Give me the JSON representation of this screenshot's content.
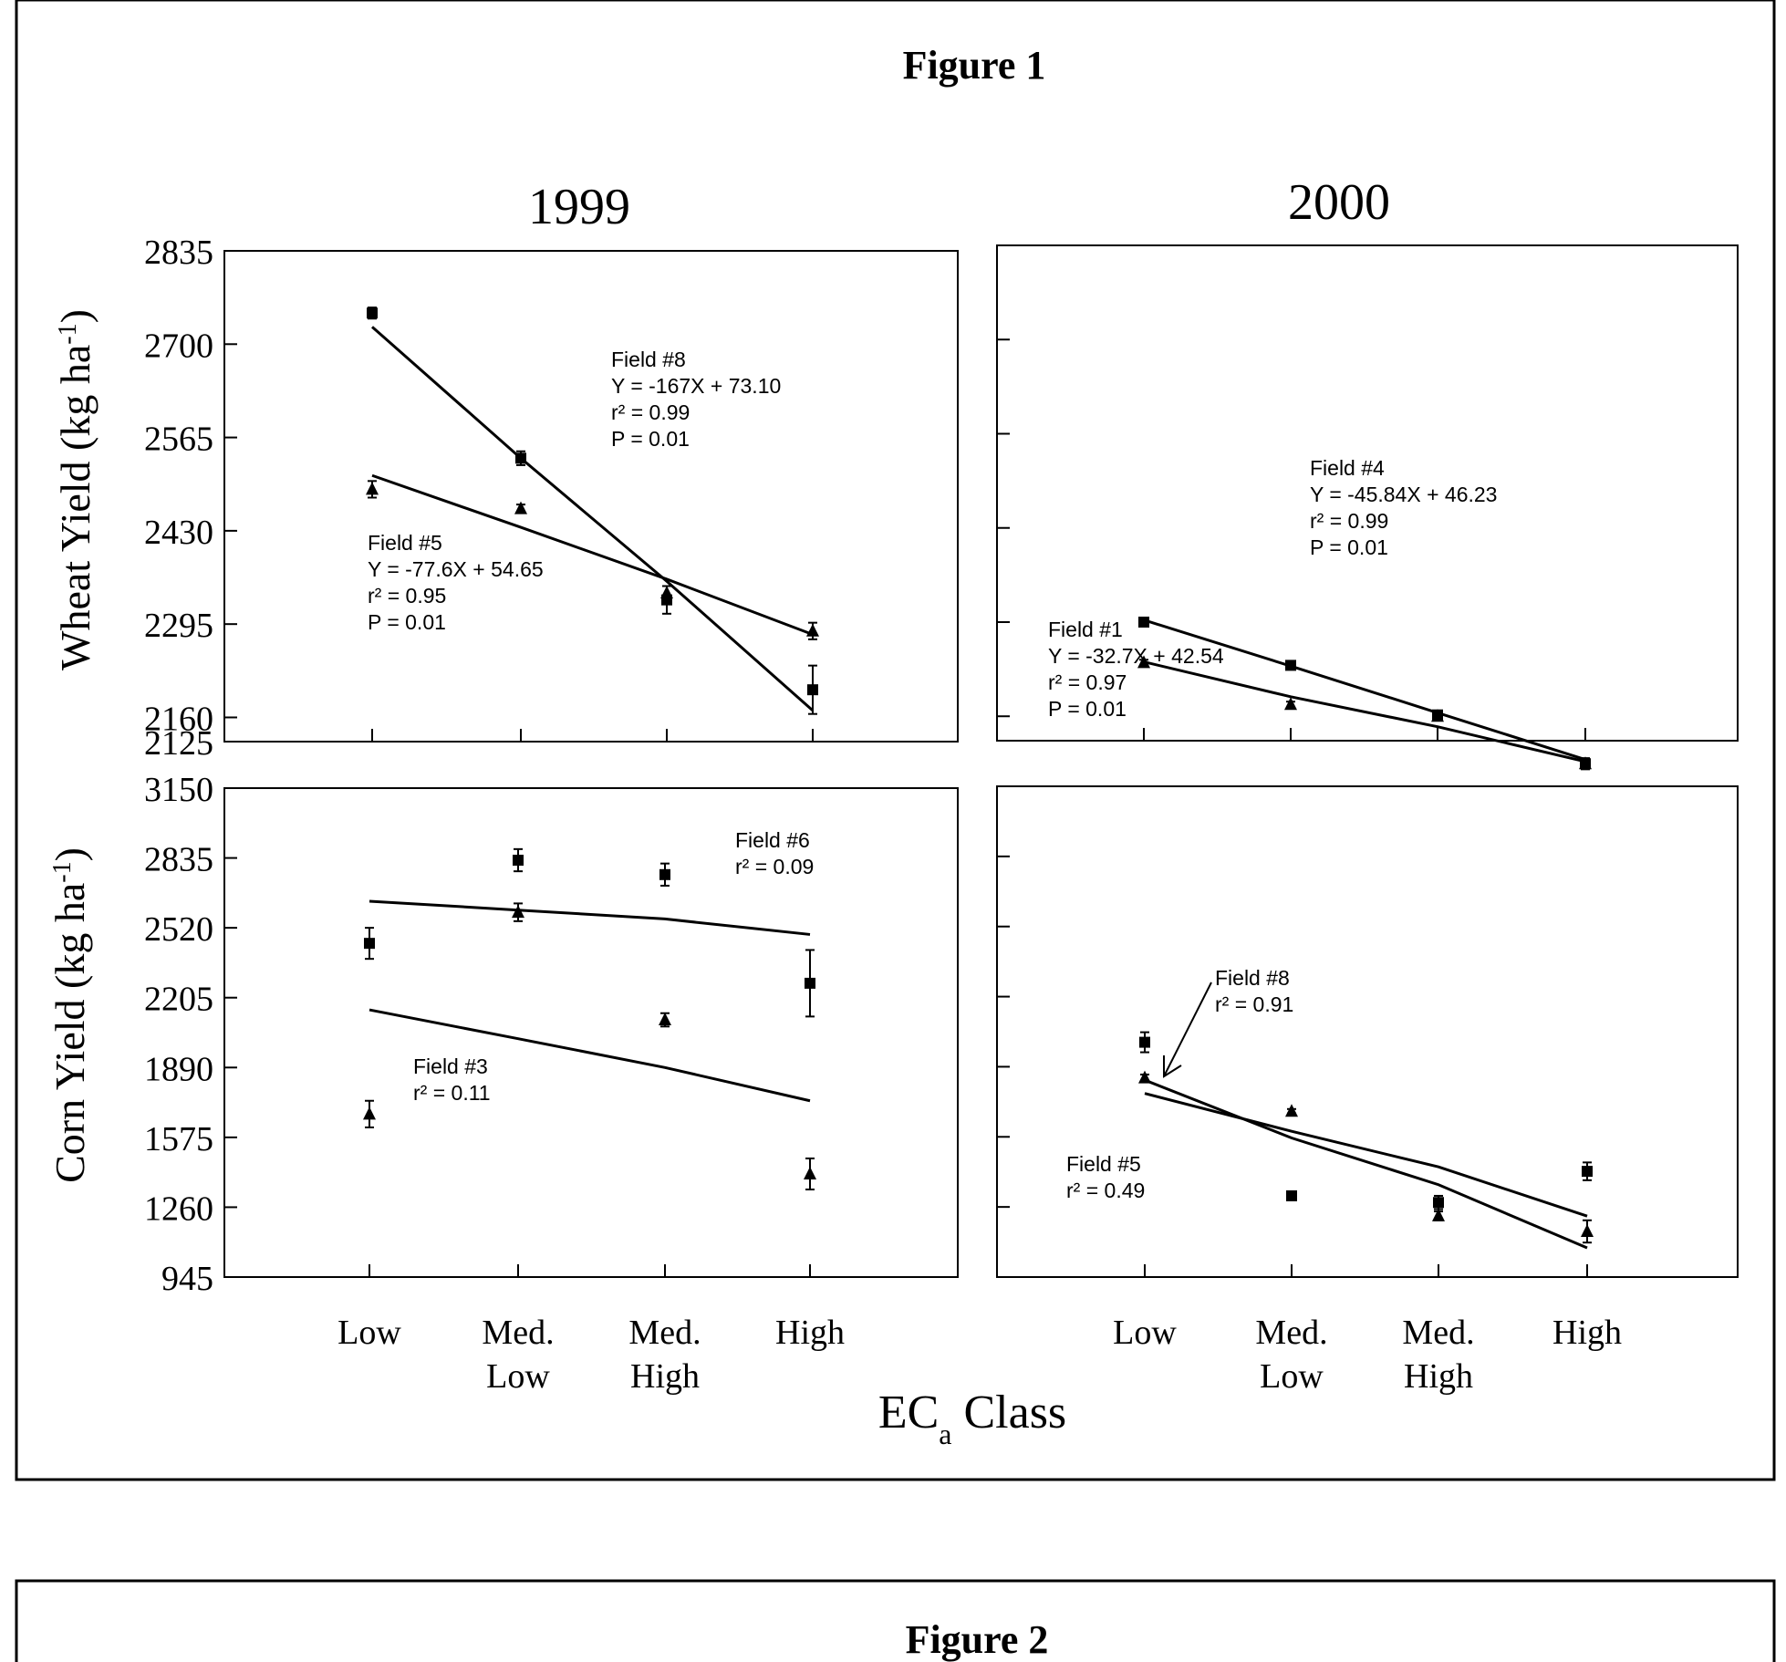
{
  "figure1": {
    "title": "Figure 1",
    "col_titles": [
      "1999",
      "2000"
    ],
    "ylabel_wheat": "Wheat Yield (kg ha-1)",
    "ylabel_corn": "Corn Yield (kg ha-1)",
    "xlabel_main": "EC",
    "xlabel_sub": "a",
    "xlabel_rest": " Class"
  },
  "figure2": {
    "title": "Figure 2"
  },
  "chart_data": [
    {
      "type": "scatter",
      "panel": "wheat-1999",
      "categories": [
        "Low",
        "Med. Low",
        "Med. High",
        "High"
      ],
      "ylim": [
        2125,
        2835
      ],
      "yticks": [
        2125,
        2160,
        2295,
        2430,
        2565,
        2700,
        2835
      ],
      "ytick_labels_shown": true,
      "xtick_labels_shown": false,
      "series": [
        {
          "name": "Field #8",
          "marker": "square",
          "values": [
            2745,
            2535,
            2330,
            2200
          ],
          "err": [
            8,
            10,
            20,
            35
          ],
          "fit": [
            2725,
            2535,
            2357,
            2170
          ]
        },
        {
          "name": "Field #5",
          "marker": "triangle",
          "values": [
            2490,
            2462,
            2340,
            2285
          ],
          "err": [
            12,
            6,
            10,
            12
          ],
          "fit": [
            2510,
            2435,
            2360,
            2280
          ]
        }
      ],
      "annotations": [
        {
          "lines": [
            "Field #8",
            "Y = -167X + 73.10",
            "r² = 0.99",
            "P = 0.01"
          ]
        },
        {
          "lines": [
            "Field #5",
            "Y = -77.6X + 54.65",
            "r² = 0.95",
            "P = 0.01"
          ]
        }
      ],
      "grid": false
    },
    {
      "type": "scatter",
      "panel": "wheat-2000",
      "categories": [
        "Low",
        "Med. Low",
        "Med. High",
        "High"
      ],
      "ylim": [
        2125,
        2835
      ],
      "yticks": [
        2160,
        2295,
        2430,
        2565,
        2700
      ],
      "ytick_labels_shown": false,
      "xtick_labels_shown": false,
      "series": [
        {
          "name": "Field #4",
          "marker": "square",
          "values": [
            2295,
            2233,
            2162,
            2092
          ],
          "err": [
            4,
            4,
            6,
            8
          ],
          "fit": [
            2298,
            2232,
            2165,
            2098
          ]
        },
        {
          "name": "Field #1",
          "marker": "triangle",
          "values": [
            2237,
            2177,
            2160,
            2092
          ],
          "err": [
            4,
            4,
            4,
            6
          ],
          "fit": [
            2238,
            2188,
            2145,
            2095
          ]
        }
      ],
      "annotations": [
        {
          "lines": [
            "Field #4",
            "Y = -45.84X + 46.23",
            "r² = 0.99",
            "P = 0.01"
          ]
        },
        {
          "lines": [
            "Field #1",
            "Y = -32.7X + 42.54",
            "r² = 0.97",
            "P = 0.01"
          ]
        }
      ],
      "grid": false
    },
    {
      "type": "scatter",
      "panel": "corn-1999",
      "categories": [
        "Low",
        "Med. Low",
        "Med. High",
        "High"
      ],
      "ylim": [
        945,
        3150
      ],
      "yticks": [
        945,
        1260,
        1575,
        1890,
        2205,
        2520,
        2835,
        3150
      ],
      "ytick_labels_shown": true,
      "xtick_labels_shown": true,
      "series": [
        {
          "name": "Field #6",
          "marker": "square",
          "values": [
            2450,
            2825,
            2760,
            2270
          ],
          "err": [
            70,
            50,
            50,
            150
          ],
          "fit": [
            2640,
            2600,
            2560,
            2490
          ]
        },
        {
          "name": "Field #3",
          "marker": "triangle",
          "values": [
            1680,
            2590,
            2105,
            1410
          ],
          "err": [
            60,
            40,
            30,
            70
          ],
          "fit": [
            2150,
            2020,
            1890,
            1740
          ]
        }
      ],
      "annotations": [
        {
          "lines": [
            "Field #6",
            "r² = 0.09"
          ]
        },
        {
          "lines": [
            "Field #3",
            "r² = 0.11"
          ]
        }
      ],
      "grid": false
    },
    {
      "type": "scatter",
      "panel": "corn-2000",
      "categories": [
        "Low",
        "Med. Low",
        "Med. High",
        "High"
      ],
      "ylim": [
        945,
        3150
      ],
      "yticks": [
        1260,
        1575,
        1890,
        2205,
        2520,
        2835
      ],
      "ytick_labels_shown": false,
      "xtick_labels_shown": true,
      "series": [
        {
          "name": "Field #8",
          "marker": "square",
          "values": [
            2000,
            1310,
            1280,
            1420
          ],
          "err": [
            45,
            15,
            30,
            40
          ],
          "fit": [
            1830,
            1570,
            1360,
            1076
          ]
        },
        {
          "name": "Field #5",
          "marker": "triangle",
          "values": [
            1840,
            1690,
            1220,
            1150
          ],
          "err": [
            15,
            10,
            20,
            50
          ],
          "fit": [
            1770,
            1600,
            1440,
            1219
          ]
        }
      ],
      "annotations": [
        {
          "lines": [
            "Field #8",
            "r² = 0.91"
          ]
        },
        {
          "lines": [
            "Field #5",
            "r² = 0.49"
          ]
        }
      ],
      "grid": false
    }
  ]
}
